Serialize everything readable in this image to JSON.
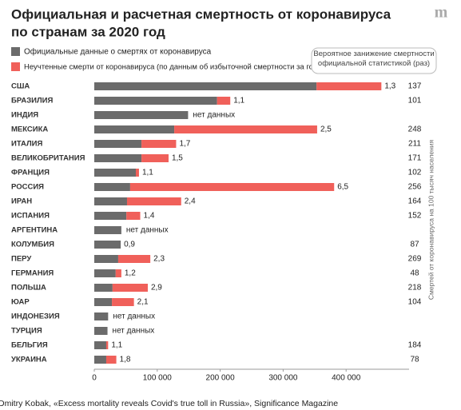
{
  "chart_data": {
    "type": "stacked-barh",
    "title": [
      "Официальная и расчетная смертность от коронавируса",
      "по странам за 2020 год"
    ],
    "logo": "m",
    "categories": [
      "США",
      "БРАЗИЛИЯ",
      "ИНДИЯ",
      "МЕКСИКА",
      "ИТАЛИЯ",
      "ВЕЛИКОБРИТАНИЯ",
      "ФРАНЦИЯ",
      "РОССИЯ",
      "ИРАН",
      "ИСПАНИЯ",
      "АРГЕНТИНА",
      "КОЛУМБИЯ",
      "ПЕРУ",
      "ГЕРМАНИЯ",
      "ПОЛЬША",
      "ЮАР",
      "ИНДОНЕЗИЯ",
      "ТУРЦИЯ",
      "БЕЛЬГИЯ",
      "УКРАИНА"
    ],
    "series": [
      {
        "name": "Официальные данные о смертях от коронавируса",
        "color": "#6b6b6b",
        "values": [
          353000,
          195000,
          149000,
          127000,
          75000,
          75000,
          66000,
          57000,
          52000,
          51000,
          43000,
          42000,
          38000,
          34000,
          29000,
          28000,
          22000,
          21000,
          19000,
          19000
        ]
      },
      {
        "name": "Неучтенные смерти от коронавируса (по данным об избыточной смертности за год)",
        "color": "#f0605a",
        "values": [
          103000,
          21000,
          null,
          227000,
          55000,
          43000,
          5000,
          324000,
          86000,
          22000,
          null,
          null,
          51000,
          9000,
          56000,
          35000,
          null,
          null,
          3000,
          16000
        ]
      }
    ],
    "ratio": {
      "name": "Вероятное занижение смертности официальной статистикой (раз)",
      "values": [
        1.3,
        1.1,
        null,
        2.5,
        1.7,
        1.5,
        1.1,
        6.5,
        2.4,
        1.4,
        null,
        0.9,
        2.3,
        1.2,
        2.9,
        2.1,
        null,
        null,
        1.1,
        1.8
      ],
      "value_labels": [
        "1,3",
        "1,1",
        "нет данных",
        "2,5",
        "1,7",
        "1,5",
        "1,1",
        "6,5",
        "2,4",
        "1,4",
        "нет данных",
        "0,9",
        "2,3",
        "1,2",
        "2,9",
        "2,1",
        "нет данных",
        "нет данных",
        "1,1",
        "1,8"
      ]
    },
    "per_100k": {
      "name": "Смертей от коронавируса на 100 тысяч населения",
      "values": [
        137,
        101,
        null,
        248,
        211,
        171,
        102,
        256,
        164,
        152,
        null,
        87,
        269,
        48,
        218,
        104,
        null,
        null,
        184,
        78
      ]
    },
    "xlim": [
      0,
      500000
    ],
    "xticks": [
      0,
      {
        "value": 100000,
        "label": "100 000"
      },
      {
        "value": 200000,
        "label": "200 000"
      },
      {
        "value": 300000,
        "label": "300 000"
      },
      {
        "value": 400000,
        "label": "400 000"
      }
    ],
    "source": "Dmitry Kobak, «Excess mortality reveals Covid's true toll in Russia», Significance Magazine"
  }
}
